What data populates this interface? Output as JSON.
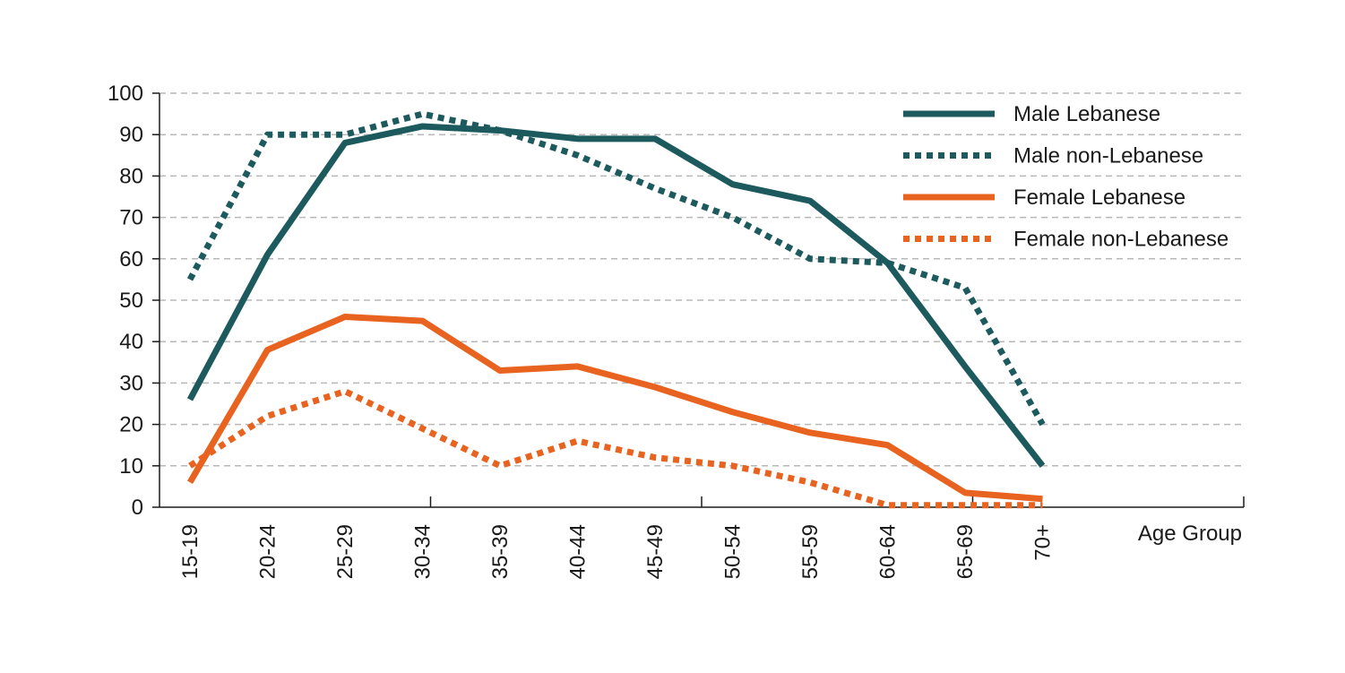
{
  "chart_data": {
    "type": "line",
    "xlabel": "Age Group",
    "ylabel": "",
    "ylim": [
      0,
      100
    ],
    "yticks": [
      0,
      10,
      20,
      30,
      40,
      50,
      60,
      70,
      80,
      90,
      100
    ],
    "grid": true,
    "legend_position": "top-right",
    "categories": [
      "15-19",
      "20-24",
      "25-29",
      "30-34",
      "35-39",
      "40-44",
      "45-49",
      "50-54",
      "55-59",
      "60-64",
      "65-69",
      "70+"
    ],
    "series": [
      {
        "name": "Male Lebanese",
        "color": "#1d5a5e",
        "dash": "solid",
        "values": [
          26,
          61,
          88,
          92,
          91,
          89,
          89,
          78,
          74,
          59,
          34,
          10
        ]
      },
      {
        "name": "Male non-Lebanese",
        "color": "#1d5a5e",
        "dash": "dotted",
        "values": [
          55,
          90,
          90,
          95,
          91,
          85,
          77,
          70,
          60,
          59,
          53,
          20
        ]
      },
      {
        "name": "Female Lebanese",
        "color": "#e8631f",
        "dash": "solid",
        "values": [
          6,
          38,
          46,
          45,
          33,
          34,
          29,
          23,
          18,
          15,
          3.5,
          2
        ]
      },
      {
        "name": "Female non-Lebanese",
        "color": "#e8631f",
        "dash": "dotted",
        "values": [
          10,
          22,
          28,
          19,
          10,
          16,
          12,
          10,
          6,
          0.5,
          0.5,
          0.5
        ]
      }
    ]
  }
}
